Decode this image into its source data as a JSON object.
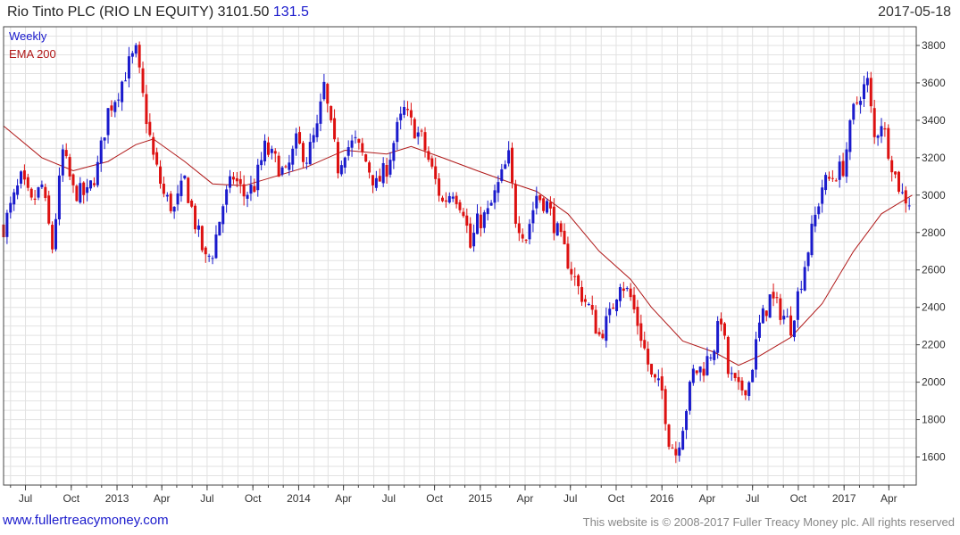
{
  "header": {
    "title": "Rio Tinto PLC (RIO LN EQUITY) 3101.50",
    "change": "131.5",
    "date": "2017-05-18"
  },
  "footer": {
    "website": "www.fullertreacymoney.com",
    "copyright": "This website is © 2008-2017 Fuller Treacy Money plc. All rights reserved"
  },
  "colors": {
    "up": "#1a1acc",
    "down": "#dd1111",
    "ema": "#b01818",
    "grid": "#e2e2e2"
  },
  "chart_data": {
    "type": "candlestick",
    "frequency": "weekly",
    "legend": [
      {
        "name": "Weekly",
        "color": "#1a1acc"
      },
      {
        "name": "EMA 200",
        "color": "#b01818"
      }
    ],
    "legend_placement": "top-left",
    "grid": true,
    "y_axis_side": "right",
    "ylim": [
      1450,
      3900
    ],
    "yticks": [
      1600,
      1800,
      2000,
      2200,
      2400,
      2600,
      2800,
      3000,
      3200,
      3400,
      3600,
      3800
    ],
    "x_start": "2012-05-18",
    "x_end": "2017-05-26",
    "xticks": [
      {
        "label": "Jul",
        "date": "2012-07-01"
      },
      {
        "label": "Oct",
        "date": "2012-10-01"
      },
      {
        "label": "2013",
        "date": "2013-01-01"
      },
      {
        "label": "Apr",
        "date": "2013-04-01"
      },
      {
        "label": "Jul",
        "date": "2013-07-01"
      },
      {
        "label": "Oct",
        "date": "2013-10-01"
      },
      {
        "label": "2014",
        "date": "2014-01-01"
      },
      {
        "label": "Apr",
        "date": "2014-04-01"
      },
      {
        "label": "Jul",
        "date": "2014-07-01"
      },
      {
        "label": "Oct",
        "date": "2014-10-01"
      },
      {
        "label": "2015",
        "date": "2015-01-01"
      },
      {
        "label": "Apr",
        "date": "2015-04-01"
      },
      {
        "label": "Jul",
        "date": "2015-07-01"
      },
      {
        "label": "Oct",
        "date": "2015-10-01"
      },
      {
        "label": "2016",
        "date": "2016-01-01"
      },
      {
        "label": "Apr",
        "date": "2016-04-01"
      },
      {
        "label": "Jul",
        "date": "2016-07-01"
      },
      {
        "label": "Oct",
        "date": "2016-10-01"
      },
      {
        "label": "2017",
        "date": "2017-01-01"
      },
      {
        "label": "Apr",
        "date": "2017-04-01"
      }
    ],
    "price_path": [
      {
        "date": "2012-05-18",
        "close": 2830
      },
      {
        "date": "2012-06-01",
        "close": 2930
      },
      {
        "date": "2012-06-22",
        "close": 3080
      },
      {
        "date": "2012-07-13",
        "close": 2950
      },
      {
        "date": "2012-08-03",
        "close": 3050
      },
      {
        "date": "2012-08-24",
        "close": 2720
      },
      {
        "date": "2012-09-14",
        "close": 3230
      },
      {
        "date": "2012-10-05",
        "close": 3020
      },
      {
        "date": "2012-11-02",
        "close": 3000
      },
      {
        "date": "2012-11-23",
        "close": 3150
      },
      {
        "date": "2012-12-14",
        "close": 3450
      },
      {
        "date": "2013-01-04",
        "close": 3560
      },
      {
        "date": "2013-01-25",
        "close": 3700
      },
      {
        "date": "2013-02-08",
        "close": 3760
      },
      {
        "date": "2013-02-22",
        "close": 3520
      },
      {
        "date": "2013-03-15",
        "close": 3200
      },
      {
        "date": "2013-04-05",
        "close": 3000
      },
      {
        "date": "2013-04-26",
        "close": 2920
      },
      {
        "date": "2013-05-17",
        "close": 3080
      },
      {
        "date": "2013-06-07",
        "close": 2850
      },
      {
        "date": "2013-06-28",
        "close": 2650
      },
      {
        "date": "2013-07-12",
        "close": 2700
      },
      {
        "date": "2013-08-02",
        "close": 2950
      },
      {
        "date": "2013-08-23",
        "close": 3100
      },
      {
        "date": "2013-09-13",
        "close": 3000
      },
      {
        "date": "2013-10-04",
        "close": 3050
      },
      {
        "date": "2013-10-25",
        "close": 3250
      },
      {
        "date": "2013-11-15",
        "close": 3180
      },
      {
        "date": "2013-12-06",
        "close": 3100
      },
      {
        "date": "2013-12-27",
        "close": 3280
      },
      {
        "date": "2014-01-17",
        "close": 3200
      },
      {
        "date": "2014-02-07",
        "close": 3350
      },
      {
        "date": "2014-02-21",
        "close": 3580
      },
      {
        "date": "2014-03-07",
        "close": 3350
      },
      {
        "date": "2014-03-21",
        "close": 3150
      },
      {
        "date": "2014-04-04",
        "close": 3250
      },
      {
        "date": "2014-04-25",
        "close": 3280
      },
      {
        "date": "2014-05-16",
        "close": 3180
      },
      {
        "date": "2014-06-06",
        "close": 3050
      },
      {
        "date": "2014-06-27",
        "close": 3150
      },
      {
        "date": "2014-07-18",
        "close": 3350
      },
      {
        "date": "2014-08-01",
        "close": 3450
      },
      {
        "date": "2014-08-15",
        "close": 3380
      },
      {
        "date": "2014-09-05",
        "close": 3300
      },
      {
        "date": "2014-09-26",
        "close": 3130
      },
      {
        "date": "2014-10-17",
        "close": 2960
      },
      {
        "date": "2014-11-07",
        "close": 3030
      },
      {
        "date": "2014-11-28",
        "close": 2930
      },
      {
        "date": "2014-12-12",
        "close": 2720
      },
      {
        "date": "2014-12-26",
        "close": 2850
      },
      {
        "date": "2015-01-16",
        "close": 2900
      },
      {
        "date": "2015-02-06",
        "close": 3050
      },
      {
        "date": "2015-02-27",
        "close": 3200
      },
      {
        "date": "2015-03-13",
        "close": 2880
      },
      {
        "date": "2015-04-03",
        "close": 2780
      },
      {
        "date": "2015-04-24",
        "close": 3000
      },
      {
        "date": "2015-05-15",
        "close": 2950
      },
      {
        "date": "2015-06-05",
        "close": 2800
      },
      {
        "date": "2015-06-26",
        "close": 2650
      },
      {
        "date": "2015-07-17",
        "close": 2500
      },
      {
        "date": "2015-08-07",
        "close": 2400
      },
      {
        "date": "2015-08-28",
        "close": 2250
      },
      {
        "date": "2015-09-18",
        "close": 2350
      },
      {
        "date": "2015-10-09",
        "close": 2550
      },
      {
        "date": "2015-10-30",
        "close": 2450
      },
      {
        "date": "2015-11-20",
        "close": 2250
      },
      {
        "date": "2015-12-11",
        "close": 2020
      },
      {
        "date": "2016-01-01",
        "close": 1950
      },
      {
        "date": "2016-01-15",
        "close": 1700
      },
      {
        "date": "2016-01-29",
        "close": 1620
      },
      {
        "date": "2016-02-12",
        "close": 1780
      },
      {
        "date": "2016-03-04",
        "close": 2050
      },
      {
        "date": "2016-03-25",
        "close": 2080
      },
      {
        "date": "2016-04-15",
        "close": 2200
      },
      {
        "date": "2016-04-29",
        "close": 2350
      },
      {
        "date": "2016-05-13",
        "close": 2050
      },
      {
        "date": "2016-06-03",
        "close": 1950
      },
      {
        "date": "2016-06-24",
        "close": 2000
      },
      {
        "date": "2016-07-15",
        "close": 2300
      },
      {
        "date": "2016-08-05",
        "close": 2450
      },
      {
        "date": "2016-08-26",
        "close": 2380
      },
      {
        "date": "2016-09-16",
        "close": 2300
      },
      {
        "date": "2016-10-07",
        "close": 2550
      },
      {
        "date": "2016-10-28",
        "close": 2800
      },
      {
        "date": "2016-11-18",
        "close": 3050
      },
      {
        "date": "2016-12-09",
        "close": 3100
      },
      {
        "date": "2016-12-30",
        "close": 3150
      },
      {
        "date": "2017-01-20",
        "close": 3450
      },
      {
        "date": "2017-02-03",
        "close": 3550
      },
      {
        "date": "2017-02-17",
        "close": 3600
      },
      {
        "date": "2017-03-03",
        "close": 3300
      },
      {
        "date": "2017-03-17",
        "close": 3400
      },
      {
        "date": "2017-03-31",
        "close": 3250
      },
      {
        "date": "2017-04-14",
        "close": 3100
      },
      {
        "date": "2017-04-28",
        "close": 3000
      },
      {
        "date": "2017-05-12",
        "close": 2970
      },
      {
        "date": "2017-05-18",
        "close": 3101.5
      }
    ],
    "ema_200": [
      {
        "date": "2012-05-18",
        "value": 3370
      },
      {
        "date": "2012-08-03",
        "value": 3200
      },
      {
        "date": "2012-10-05",
        "value": 3130
      },
      {
        "date": "2012-12-14",
        "value": 3180
      },
      {
        "date": "2013-02-08",
        "value": 3270
      },
      {
        "date": "2013-03-15",
        "value": 3300
      },
      {
        "date": "2013-05-17",
        "value": 3180
      },
      {
        "date": "2013-07-12",
        "value": 3060
      },
      {
        "date": "2013-09-13",
        "value": 3050
      },
      {
        "date": "2013-11-15",
        "value": 3100
      },
      {
        "date": "2014-01-17",
        "value": 3150
      },
      {
        "date": "2014-04-04",
        "value": 3240
      },
      {
        "date": "2014-06-27",
        "value": 3220
      },
      {
        "date": "2014-08-15",
        "value": 3260
      },
      {
        "date": "2014-10-17",
        "value": 3200
      },
      {
        "date": "2014-12-26",
        "value": 3130
      },
      {
        "date": "2015-02-27",
        "value": 3070
      },
      {
        "date": "2015-04-24",
        "value": 3020
      },
      {
        "date": "2015-06-26",
        "value": 2900
      },
      {
        "date": "2015-08-28",
        "value": 2700
      },
      {
        "date": "2015-10-30",
        "value": 2550
      },
      {
        "date": "2015-12-11",
        "value": 2400
      },
      {
        "date": "2016-02-12",
        "value": 2220
      },
      {
        "date": "2016-04-15",
        "value": 2160
      },
      {
        "date": "2016-06-03",
        "value": 2090
      },
      {
        "date": "2016-07-15",
        "value": 2140
      },
      {
        "date": "2016-09-16",
        "value": 2240
      },
      {
        "date": "2016-11-18",
        "value": 2420
      },
      {
        "date": "2017-01-20",
        "value": 2700
      },
      {
        "date": "2017-03-17",
        "value": 2900
      },
      {
        "date": "2017-05-18",
        "value": 3000
      }
    ]
  }
}
